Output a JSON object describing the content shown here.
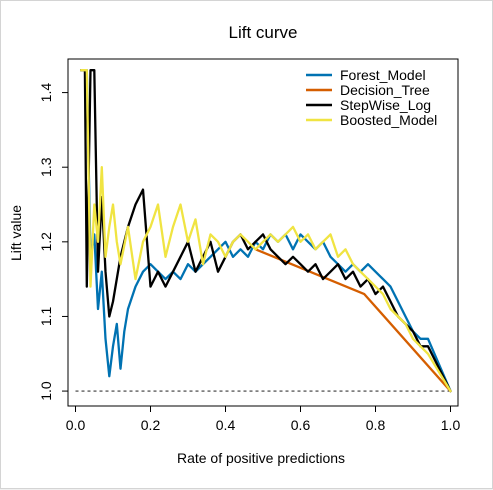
{
  "chart_data": {
    "type": "line",
    "title": "Lift curve",
    "xlabel": "Rate of positive predictions",
    "ylabel": "Lift value",
    "xlim": [
      -0.02,
      1.02
    ],
    "ylim": [
      0.98,
      1.445
    ],
    "xticks": [
      0.0,
      0.2,
      0.4,
      0.6,
      0.8,
      1.0
    ],
    "xtick_labels": [
      "0.0",
      "0.2",
      "0.4",
      "0.6",
      "0.8",
      "1.0"
    ],
    "yticks": [
      1.0,
      1.1,
      1.2,
      1.3,
      1.4
    ],
    "ytick_labels": [
      "1.0",
      "1.1",
      "1.2",
      "1.3",
      "1.4"
    ],
    "reference_line": {
      "y": 1.0,
      "style": "dashed"
    },
    "legend_position": "top-right",
    "series": [
      {
        "name": "Forest_Model",
        "color": "#0072b2",
        "x": [
          0.015,
          0.03,
          0.04,
          0.05,
          0.06,
          0.07,
          0.08,
          0.09,
          0.1,
          0.11,
          0.12,
          0.13,
          0.14,
          0.16,
          0.18,
          0.2,
          0.22,
          0.24,
          0.26,
          0.28,
          0.3,
          0.32,
          0.34,
          0.36,
          0.38,
          0.4,
          0.42,
          0.44,
          0.46,
          0.48,
          0.5,
          0.52,
          0.54,
          0.56,
          0.58,
          0.6,
          0.62,
          0.64,
          0.66,
          0.68,
          0.7,
          0.72,
          0.74,
          0.76,
          0.78,
          0.8,
          0.82,
          0.84,
          0.86,
          0.88,
          0.9,
          0.92,
          0.94,
          1.0
        ],
        "y": [
          1.43,
          1.43,
          1.18,
          1.21,
          1.11,
          1.16,
          1.07,
          1.02,
          1.06,
          1.09,
          1.03,
          1.08,
          1.11,
          1.14,
          1.16,
          1.17,
          1.16,
          1.15,
          1.16,
          1.15,
          1.17,
          1.16,
          1.17,
          1.18,
          1.19,
          1.2,
          1.18,
          1.19,
          1.18,
          1.2,
          1.19,
          1.21,
          1.2,
          1.21,
          1.19,
          1.21,
          1.2,
          1.19,
          1.2,
          1.18,
          1.17,
          1.16,
          1.17,
          1.16,
          1.17,
          1.16,
          1.15,
          1.14,
          1.12,
          1.1,
          1.08,
          1.07,
          1.07,
          1.0
        ]
      },
      {
        "name": "Decision_Tree",
        "color": "#d55e00",
        "x": [
          0.48,
          0.77,
          1.0
        ],
        "y": [
          1.19,
          1.13,
          1.0
        ]
      },
      {
        "name": "StepWise_Log",
        "color": "#000000",
        "x": [
          0.015,
          0.025,
          0.03,
          0.04,
          0.05,
          0.06,
          0.07,
          0.08,
          0.09,
          0.1,
          0.12,
          0.14,
          0.16,
          0.18,
          0.2,
          0.22,
          0.24,
          0.26,
          0.28,
          0.3,
          0.32,
          0.34,
          0.36,
          0.38,
          0.4,
          0.42,
          0.44,
          0.46,
          0.48,
          0.5,
          0.52,
          0.54,
          0.56,
          0.58,
          0.6,
          0.62,
          0.64,
          0.66,
          0.68,
          0.7,
          0.72,
          0.74,
          0.76,
          0.78,
          0.8,
          0.82,
          0.84,
          0.86,
          0.88,
          0.9,
          0.92,
          0.94,
          1.0
        ],
        "y": [
          1.43,
          1.43,
          1.14,
          1.43,
          1.43,
          1.16,
          1.26,
          1.16,
          1.1,
          1.12,
          1.18,
          1.22,
          1.25,
          1.27,
          1.14,
          1.16,
          1.14,
          1.16,
          1.18,
          1.2,
          1.16,
          1.18,
          1.2,
          1.16,
          1.18,
          1.2,
          1.21,
          1.19,
          1.2,
          1.21,
          1.19,
          1.18,
          1.17,
          1.18,
          1.17,
          1.16,
          1.17,
          1.15,
          1.16,
          1.17,
          1.15,
          1.16,
          1.14,
          1.15,
          1.13,
          1.14,
          1.12,
          1.1,
          1.09,
          1.08,
          1.06,
          1.06,
          1.0
        ]
      },
      {
        "name": "Boosted_Model",
        "color": "#f0e442",
        "x": [
          0.015,
          0.03,
          0.04,
          0.05,
          0.06,
          0.07,
          0.08,
          0.09,
          0.1,
          0.11,
          0.12,
          0.14,
          0.16,
          0.18,
          0.2,
          0.22,
          0.24,
          0.26,
          0.28,
          0.3,
          0.32,
          0.34,
          0.36,
          0.38,
          0.4,
          0.42,
          0.44,
          0.46,
          0.48,
          0.5,
          0.52,
          0.54,
          0.56,
          0.58,
          0.6,
          0.62,
          0.64,
          0.66,
          0.68,
          0.7,
          0.72,
          0.74,
          0.76,
          0.78,
          0.8,
          0.82,
          0.84,
          0.86,
          0.88,
          0.9,
          0.92,
          0.94,
          1.0
        ],
        "y": [
          1.43,
          1.43,
          1.14,
          1.25,
          1.2,
          1.3,
          1.18,
          1.22,
          1.25,
          1.2,
          1.17,
          1.22,
          1.15,
          1.2,
          1.22,
          1.25,
          1.18,
          1.22,
          1.25,
          1.2,
          1.23,
          1.17,
          1.21,
          1.2,
          1.18,
          1.2,
          1.21,
          1.2,
          1.19,
          1.2,
          1.21,
          1.2,
          1.21,
          1.22,
          1.2,
          1.21,
          1.19,
          1.2,
          1.21,
          1.18,
          1.19,
          1.17,
          1.16,
          1.15,
          1.14,
          1.13,
          1.11,
          1.1,
          1.09,
          1.07,
          1.06,
          1.05,
          1.0
        ]
      }
    ]
  }
}
